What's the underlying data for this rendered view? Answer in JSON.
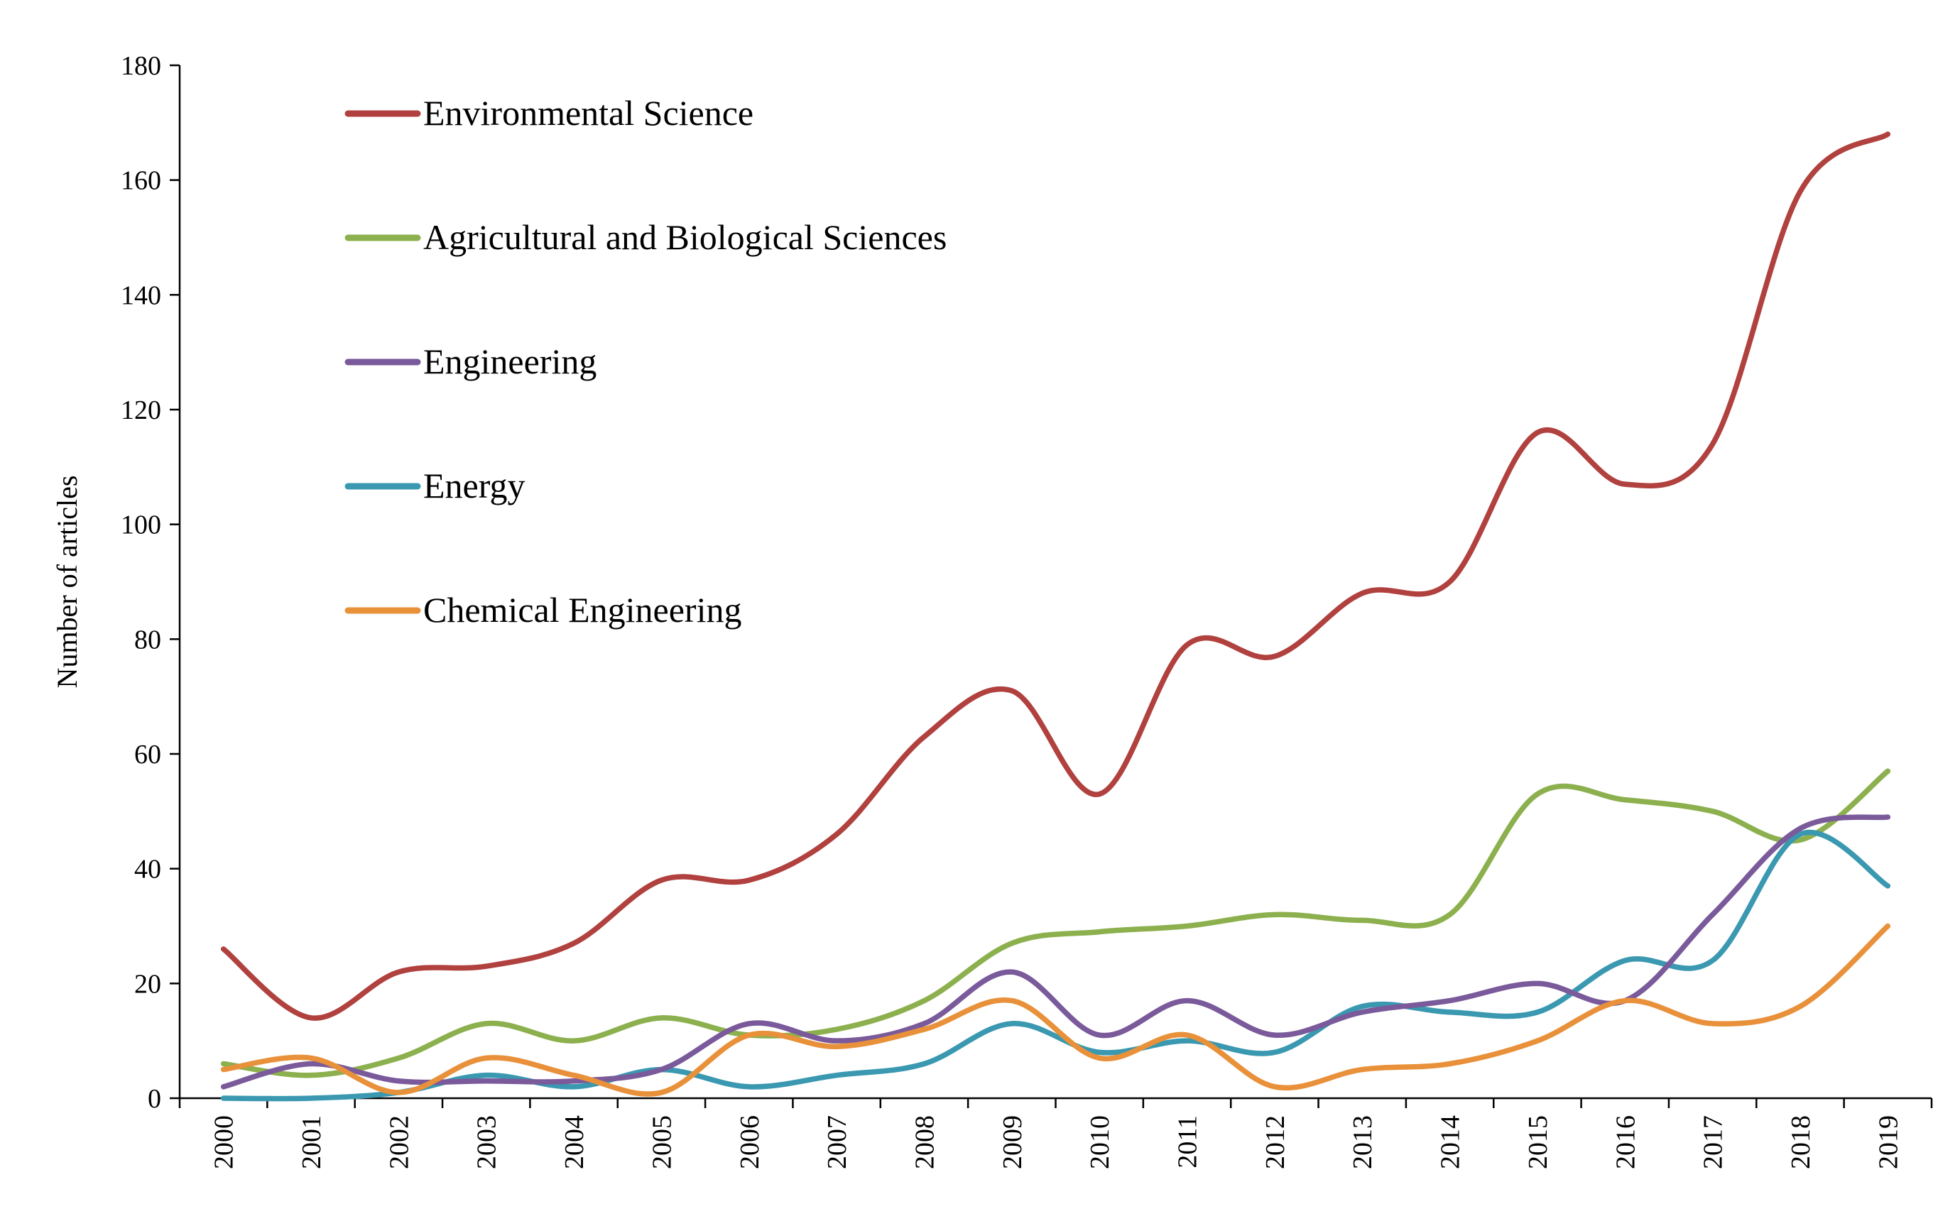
{
  "chart_data": {
    "type": "line",
    "title": "",
    "xlabel": "",
    "ylabel": "Number of articles",
    "ylim": [
      0,
      180
    ],
    "yticks": [
      0,
      20,
      40,
      60,
      80,
      100,
      120,
      140,
      160,
      180
    ],
    "grid": false,
    "legend_position": "top-left",
    "categories": [
      "2000",
      "2001",
      "2002",
      "2003",
      "2004",
      "2005",
      "2006",
      "2007",
      "2008",
      "2009",
      "2010",
      "2011",
      "2012",
      "2013",
      "2014",
      "2015",
      "2016",
      "2017",
      "2018",
      "2019"
    ],
    "series": [
      {
        "name": "Environmental Science",
        "color": "#b0413e",
        "values": [
          26,
          14,
          22,
          23,
          27,
          38,
          38,
          46,
          63,
          71,
          53,
          79,
          77,
          88,
          90,
          116,
          107,
          114,
          158,
          168
        ]
      },
      {
        "name": "Agricultural and Biological Sciences",
        "color": "#8cb04e",
        "values": [
          6,
          4,
          7,
          13,
          10,
          14,
          11,
          12,
          17,
          27,
          29,
          30,
          32,
          31,
          32,
          53,
          52,
          50,
          45,
          57
        ]
      },
      {
        "name": "Engineering",
        "color": "#7a5a9a",
        "values": [
          2,
          6,
          3,
          3,
          3,
          5,
          13,
          10,
          13,
          22,
          11,
          17,
          11,
          15,
          17,
          20,
          17,
          32,
          47,
          49
        ]
      },
      {
        "name": "Energy",
        "color": "#3a98b0",
        "values": [
          0,
          0,
          1,
          4,
          2,
          5,
          2,
          4,
          6,
          13,
          8,
          10,
          8,
          16,
          15,
          15,
          24,
          24,
          46,
          37
        ]
      },
      {
        "name": "Chemical Engineering",
        "color": "#e8913a",
        "values": [
          5,
          7,
          1,
          7,
          4,
          1,
          11,
          9,
          12,
          17,
          7,
          11,
          2,
          5,
          6,
          10,
          17,
          13,
          16,
          30
        ]
      }
    ]
  }
}
